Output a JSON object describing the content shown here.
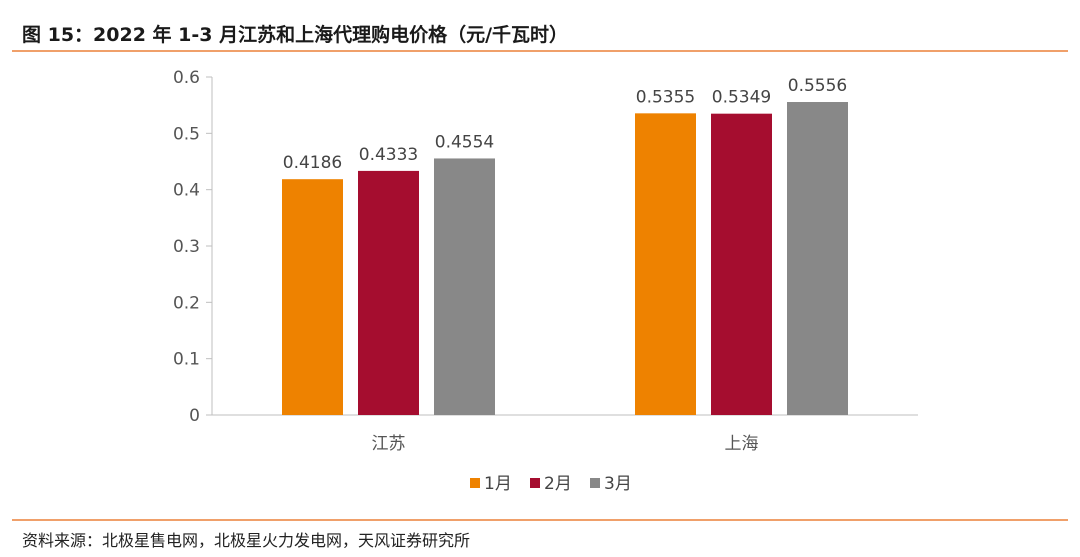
{
  "figure": {
    "title": "图 15：2022 年 1-3 月江苏和上海代理购电价格（元/千瓦时）",
    "source": "资料来源：北极星售电网，北极星火力发电网，天风证券研究所"
  },
  "colors": {
    "accent_rule": "#f0a06a",
    "series": [
      "#ee8200",
      "#a50d2f",
      "#888888"
    ]
  },
  "chart_data": {
    "type": "bar",
    "title": "",
    "xlabel": "",
    "ylabel": "",
    "categories": [
      "江苏",
      "上海"
    ],
    "series": [
      {
        "name": "1月",
        "values": [
          0.4186,
          0.5355
        ],
        "labels": [
          "0.4186",
          "0.5355"
        ]
      },
      {
        "name": "2月",
        "values": [
          0.4333,
          0.5349
        ],
        "labels": [
          "0.4333",
          "0.5349"
        ]
      },
      {
        "name": "3月",
        "values": [
          0.4554,
          0.5556
        ],
        "labels": [
          "0.4554",
          "0.5556"
        ]
      }
    ],
    "ylim": [
      0,
      0.6
    ],
    "yticks": [
      "0",
      "0.1",
      "0.2",
      "0.3",
      "0.4",
      "0.5",
      "0.6"
    ],
    "grid": false,
    "legend": "bottom"
  }
}
